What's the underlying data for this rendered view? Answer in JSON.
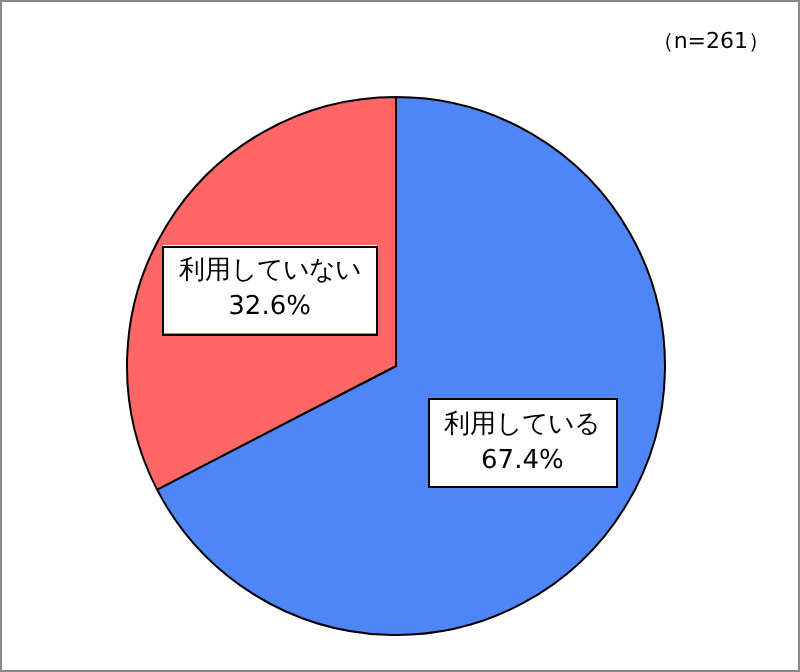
{
  "chart_data": {
    "type": "pie",
    "categories": [
      "利用している",
      "利用していない"
    ],
    "values": [
      67.4,
      32.6
    ],
    "colors": [
      "#4f86f7",
      "#ff6666"
    ],
    "value_labels": [
      "67.4%",
      "32.6%"
    ],
    "annotations": [
      "（n=261）"
    ],
    "legend": false
  }
}
